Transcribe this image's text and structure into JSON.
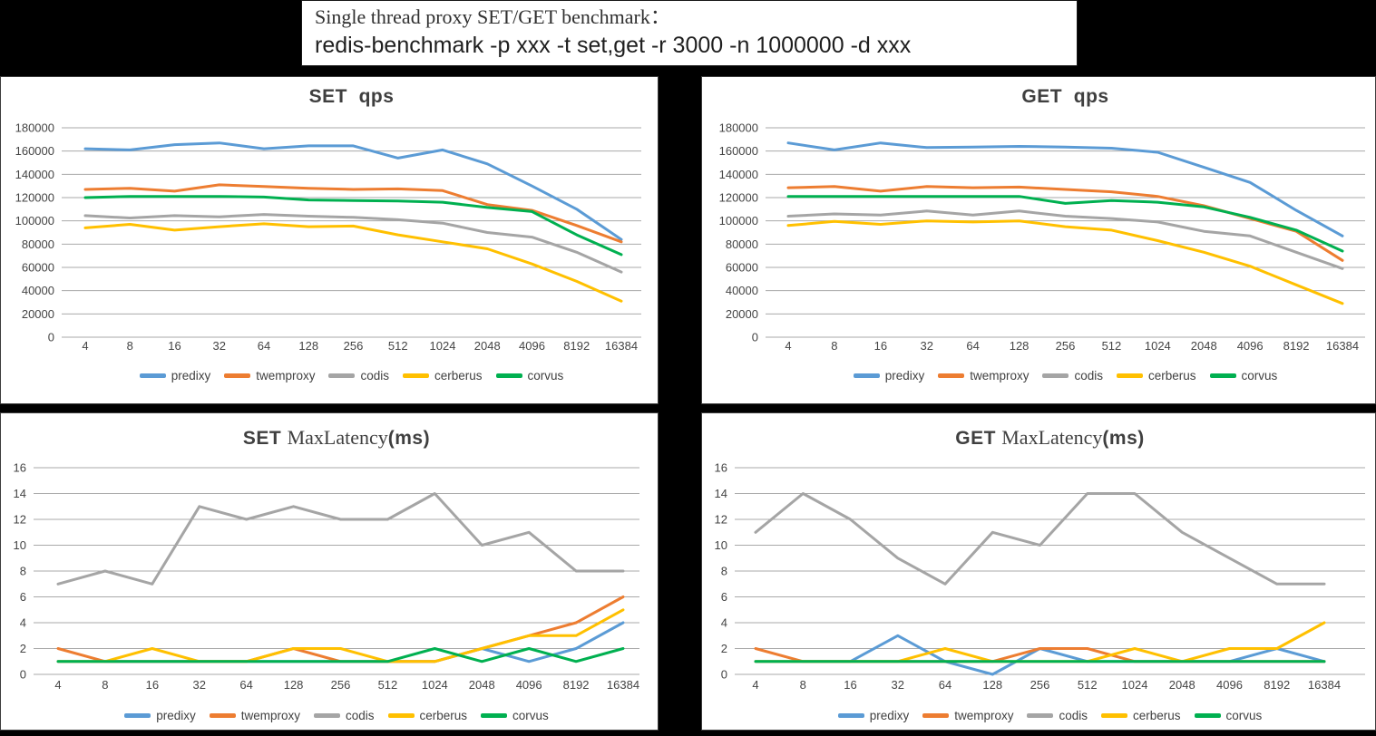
{
  "header": {
    "line1": "Single thread proxy SET/GET benchmark：",
    "line2": "redis-benchmark -p xxx -t set,get -r 3000 -n 1000000 -d xxx"
  },
  "palette": {
    "predixy": "#5B9BD5",
    "twemproxy": "#ED7D31",
    "codis": "#A5A5A5",
    "cerberus": "#FFC000",
    "corvus": "#00B050"
  },
  "legend_order": [
    "predixy",
    "twemproxy",
    "codis",
    "cerberus",
    "corvus"
  ],
  "chart_data": [
    {
      "id": "set-qps",
      "type": "line",
      "title_parts": [
        {
          "text": "SET  qps",
          "style": "bold"
        }
      ],
      "categories": [
        "4",
        "8",
        "16",
        "32",
        "64",
        "128",
        "256",
        "512",
        "1024",
        "2048",
        "4096",
        "8192",
        "16384"
      ],
      "ylim": [
        0,
        180000
      ],
      "yticks": [
        0,
        20000,
        40000,
        60000,
        80000,
        100000,
        120000,
        140000,
        160000,
        180000
      ],
      "grid": "horizontal",
      "legend_position": "bottom",
      "series": [
        {
          "name": "predixy",
          "values": [
            162000,
            161000,
            165500,
            167000,
            162000,
            164500,
            164500,
            154000,
            161000,
            149000,
            130000,
            110000,
            84000
          ]
        },
        {
          "name": "twemproxy",
          "values": [
            127000,
            128000,
            125500,
            131000,
            129500,
            128000,
            127000,
            127500,
            126000,
            114000,
            109000,
            96000,
            82000
          ]
        },
        {
          "name": "codis",
          "values": [
            104500,
            102500,
            104500,
            103500,
            105500,
            104000,
            103000,
            101000,
            98000,
            90000,
            86000,
            73000,
            56000
          ]
        },
        {
          "name": "cerberus",
          "values": [
            94000,
            97000,
            92000,
            95000,
            97500,
            95000,
            95500,
            88000,
            82000,
            76000,
            63000,
            48000,
            31000
          ]
        },
        {
          "name": "corvus",
          "values": [
            120000,
            121000,
            121000,
            121000,
            120500,
            118000,
            117500,
            117000,
            116000,
            111500,
            108000,
            88000,
            71000
          ]
        }
      ]
    },
    {
      "id": "get-qps",
      "type": "line",
      "title_parts": [
        {
          "text": "GET  qps",
          "style": "bold"
        }
      ],
      "categories": [
        "4",
        "8",
        "16",
        "32",
        "64",
        "128",
        "256",
        "512",
        "1024",
        "2048",
        "4096",
        "8192",
        "16384"
      ],
      "ylim": [
        0,
        180000
      ],
      "yticks": [
        0,
        20000,
        40000,
        60000,
        80000,
        100000,
        120000,
        140000,
        160000,
        180000
      ],
      "grid": "horizontal",
      "legend_position": "bottom",
      "series": [
        {
          "name": "predixy",
          "values": [
            167000,
            161000,
            167000,
            163000,
            163500,
            164000,
            163500,
            162500,
            159000,
            146000,
            133000,
            109000,
            87000
          ]
        },
        {
          "name": "twemproxy",
          "values": [
            128500,
            129500,
            125500,
            129500,
            128500,
            129000,
            127000,
            125000,
            121000,
            113000,
            102000,
            91000,
            66000
          ]
        },
        {
          "name": "codis",
          "values": [
            104000,
            106000,
            105000,
            108500,
            105000,
            108500,
            104000,
            102000,
            99000,
            91000,
            87000,
            73000,
            59000
          ]
        },
        {
          "name": "cerberus",
          "values": [
            96000,
            99500,
            97000,
            100000,
            99000,
            100000,
            95000,
            92000,
            83000,
            73000,
            61000,
            45000,
            29000
          ]
        },
        {
          "name": "corvus",
          "values": [
            121000,
            121000,
            121000,
            121000,
            121000,
            121000,
            115000,
            117500,
            116000,
            112000,
            103000,
            92000,
            74000
          ]
        }
      ]
    },
    {
      "id": "set-maxlatency",
      "type": "line",
      "title_parts": [
        {
          "text": "SET ",
          "style": "bold"
        },
        {
          "text": "MaxLatency",
          "style": "serif"
        },
        {
          "text": "(ms)",
          "style": "bold"
        }
      ],
      "categories": [
        "4",
        "8",
        "16",
        "32",
        "64",
        "128",
        "256",
        "512",
        "1024",
        "2048",
        "4096",
        "8192",
        "16384"
      ],
      "ylim": [
        0,
        16
      ],
      "yticks": [
        0,
        2,
        4,
        6,
        8,
        10,
        12,
        14,
        16
      ],
      "grid": "horizontal",
      "legend_position": "bottom",
      "series": [
        {
          "name": "predixy",
          "values": [
            1,
            1,
            1,
            1,
            1,
            1,
            1,
            1,
            1,
            2,
            1,
            2,
            4
          ]
        },
        {
          "name": "twemproxy",
          "values": [
            2,
            1,
            1,
            1,
            1,
            2,
            1,
            1,
            1,
            2,
            3,
            4,
            6
          ]
        },
        {
          "name": "codis",
          "values": [
            7,
            8,
            7,
            13,
            12,
            13,
            12,
            12,
            14,
            10,
            11,
            8,
            8
          ]
        },
        {
          "name": "cerberus",
          "values": [
            1,
            1,
            2,
            1,
            1,
            2,
            2,
            1,
            1,
            2,
            3,
            3,
            5
          ]
        },
        {
          "name": "corvus",
          "values": [
            1,
            1,
            1,
            1,
            1,
            1,
            1,
            1,
            2,
            1,
            2,
            1,
            2
          ]
        }
      ]
    },
    {
      "id": "get-maxlatency",
      "type": "line",
      "title_parts": [
        {
          "text": "GET ",
          "style": "bold"
        },
        {
          "text": "MaxLatency",
          "style": "serif"
        },
        {
          "text": "(ms)",
          "style": "bold"
        }
      ],
      "categories": [
        "4",
        "8",
        "16",
        "32",
        "64",
        "128",
        "256",
        "512",
        "1024",
        "2048",
        "4096",
        "8192",
        "16384"
      ],
      "ylim": [
        0,
        16
      ],
      "yticks": [
        0,
        2,
        4,
        6,
        8,
        10,
        12,
        14,
        16
      ],
      "grid": "horizontal",
      "legend_position": "bottom",
      "series": [
        {
          "name": "predixy",
          "values": [
            1,
            1,
            1,
            3,
            1,
            0,
            2,
            1,
            1,
            1,
            1,
            2,
            1
          ]
        },
        {
          "name": "twemproxy",
          "values": [
            2,
            1,
            1,
            1,
            1,
            1,
            2,
            2,
            1,
            1,
            1,
            1,
            1
          ]
        },
        {
          "name": "codis",
          "values": [
            11,
            14,
            12,
            9,
            7,
            11,
            10,
            14,
            14,
            11,
            9,
            7,
            7
          ]
        },
        {
          "name": "cerberus",
          "values": [
            1,
            1,
            1,
            1,
            2,
            1,
            1,
            1,
            2,
            1,
            2,
            2,
            4
          ]
        },
        {
          "name": "corvus",
          "values": [
            1,
            1,
            1,
            1,
            1,
            1,
            1,
            1,
            1,
            1,
            1,
            1,
            1
          ]
        }
      ]
    }
  ]
}
